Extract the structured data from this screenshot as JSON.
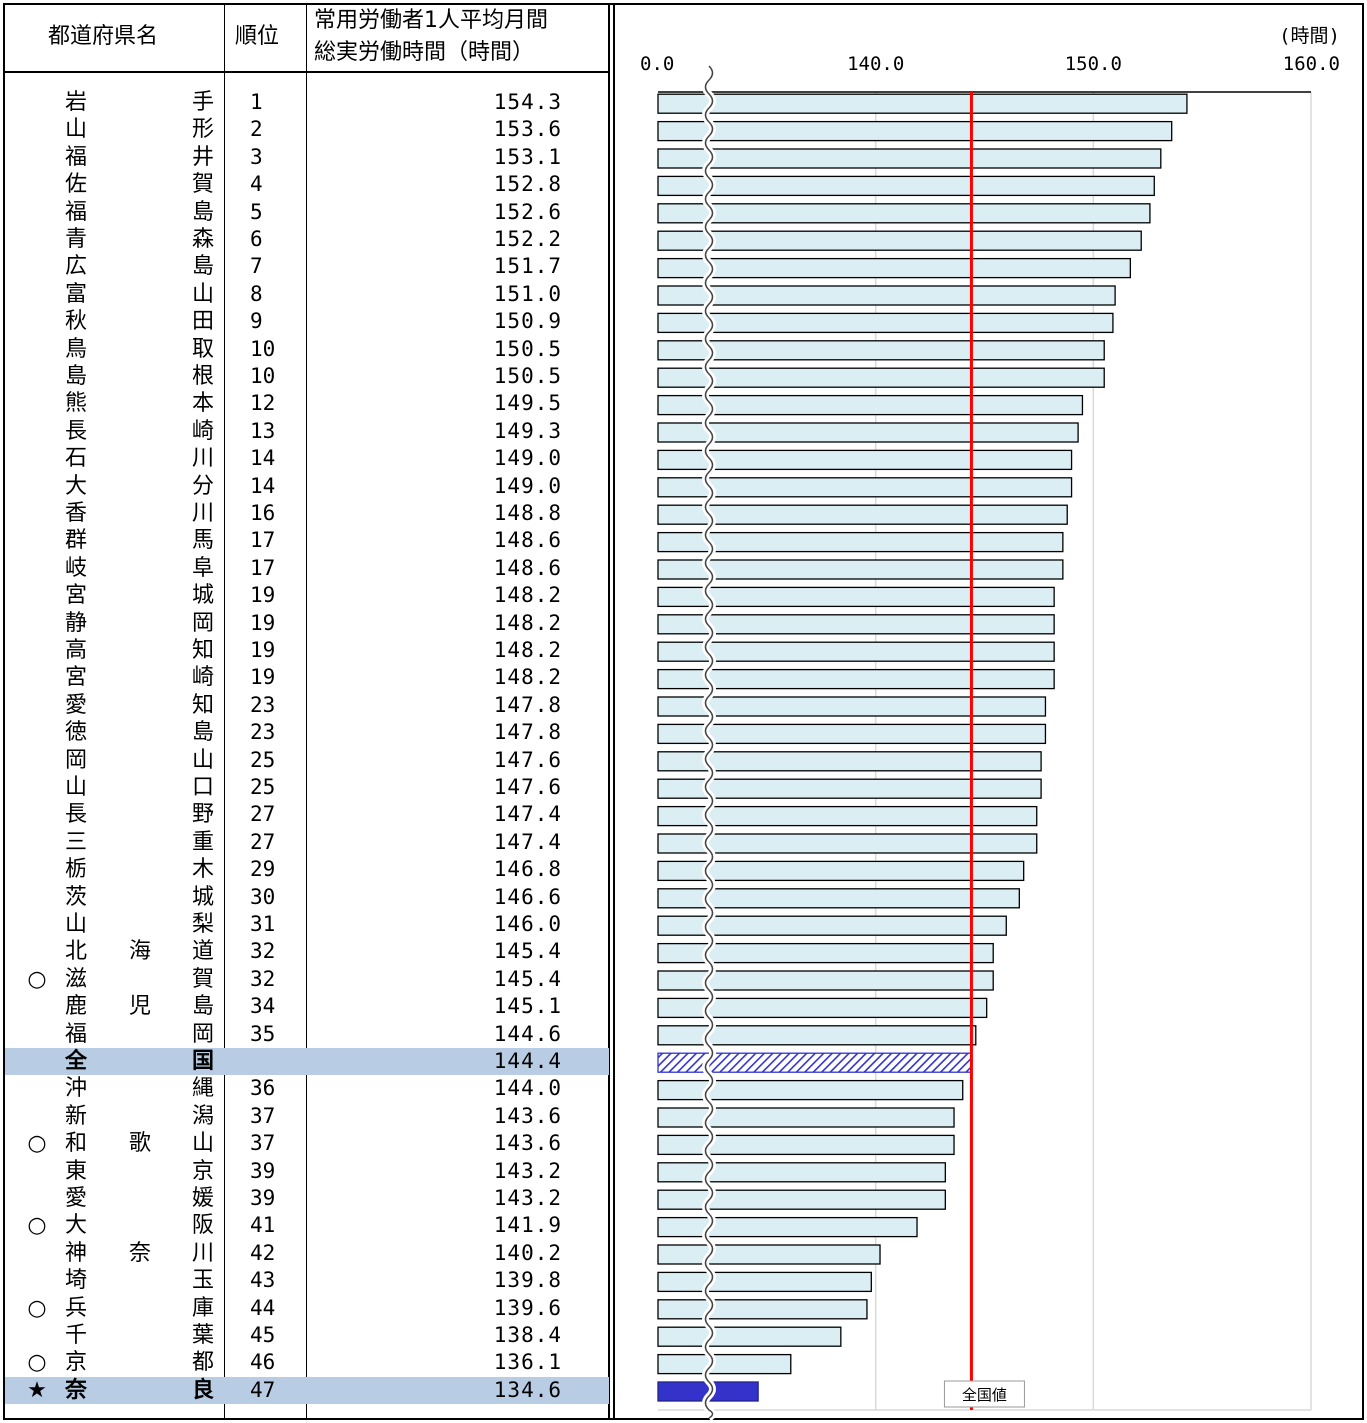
{
  "table": {
    "headers": {
      "prefecture": "都道府県名",
      "rank": "順位",
      "value_line1": "常用労働者1人平均月間",
      "value_line2": "総実労働時間（時間）"
    },
    "rows": [
      {
        "mark": "",
        "name": "岩手",
        "rank": "1",
        "value": "154.3",
        "highlight": false
      },
      {
        "mark": "",
        "name": "山形",
        "rank": "2",
        "value": "153.6",
        "highlight": false
      },
      {
        "mark": "",
        "name": "福井",
        "rank": "3",
        "value": "153.1",
        "highlight": false
      },
      {
        "mark": "",
        "name": "佐賀",
        "rank": "4",
        "value": "152.8",
        "highlight": false
      },
      {
        "mark": "",
        "name": "福島",
        "rank": "5",
        "value": "152.6",
        "highlight": false
      },
      {
        "mark": "",
        "name": "青森",
        "rank": "6",
        "value": "152.2",
        "highlight": false
      },
      {
        "mark": "",
        "name": "広島",
        "rank": "7",
        "value": "151.7",
        "highlight": false
      },
      {
        "mark": "",
        "name": "富山",
        "rank": "8",
        "value": "151.0",
        "highlight": false
      },
      {
        "mark": "",
        "name": "秋田",
        "rank": "9",
        "value": "150.9",
        "highlight": false
      },
      {
        "mark": "",
        "name": "鳥取",
        "rank": "10",
        "value": "150.5",
        "highlight": false
      },
      {
        "mark": "",
        "name": "島根",
        "rank": "10",
        "value": "150.5",
        "highlight": false
      },
      {
        "mark": "",
        "name": "熊本",
        "rank": "12",
        "value": "149.5",
        "highlight": false
      },
      {
        "mark": "",
        "name": "長崎",
        "rank": "13",
        "value": "149.3",
        "highlight": false
      },
      {
        "mark": "",
        "name": "石川",
        "rank": "14",
        "value": "149.0",
        "highlight": false
      },
      {
        "mark": "",
        "name": "大分",
        "rank": "14",
        "value": "149.0",
        "highlight": false
      },
      {
        "mark": "",
        "name": "香川",
        "rank": "16",
        "value": "148.8",
        "highlight": false
      },
      {
        "mark": "",
        "name": "群馬",
        "rank": "17",
        "value": "148.6",
        "highlight": false
      },
      {
        "mark": "",
        "name": "岐阜",
        "rank": "17",
        "value": "148.6",
        "highlight": false
      },
      {
        "mark": "",
        "name": "宮城",
        "rank": "19",
        "value": "148.2",
        "highlight": false
      },
      {
        "mark": "",
        "name": "静岡",
        "rank": "19",
        "value": "148.2",
        "highlight": false
      },
      {
        "mark": "",
        "name": "高知",
        "rank": "19",
        "value": "148.2",
        "highlight": false
      },
      {
        "mark": "",
        "name": "宮崎",
        "rank": "19",
        "value": "148.2",
        "highlight": false
      },
      {
        "mark": "",
        "name": "愛知",
        "rank": "23",
        "value": "147.8",
        "highlight": false
      },
      {
        "mark": "",
        "name": "徳島",
        "rank": "23",
        "value": "147.8",
        "highlight": false
      },
      {
        "mark": "",
        "name": "岡山",
        "rank": "25",
        "value": "147.6",
        "highlight": false
      },
      {
        "mark": "",
        "name": "山口",
        "rank": "25",
        "value": "147.6",
        "highlight": false
      },
      {
        "mark": "",
        "name": "長野",
        "rank": "27",
        "value": "147.4",
        "highlight": false
      },
      {
        "mark": "",
        "name": "三重",
        "rank": "27",
        "value": "147.4",
        "highlight": false
      },
      {
        "mark": "",
        "name": "栃木",
        "rank": "29",
        "value": "146.8",
        "highlight": false
      },
      {
        "mark": "",
        "name": "茨城",
        "rank": "30",
        "value": "146.6",
        "highlight": false
      },
      {
        "mark": "",
        "name": "山梨",
        "rank": "31",
        "value": "146.0",
        "highlight": false
      },
      {
        "mark": "",
        "name": "北海道",
        "rank": "32",
        "value": "145.4",
        "highlight": false
      },
      {
        "mark": "○",
        "name": "滋賀",
        "rank": "32",
        "value": "145.4",
        "highlight": false
      },
      {
        "mark": "",
        "name": "鹿児島",
        "rank": "34",
        "value": "145.1",
        "highlight": false
      },
      {
        "mark": "",
        "name": "福岡",
        "rank": "35",
        "value": "144.6",
        "highlight": false
      },
      {
        "mark": "",
        "name": "全国",
        "rank": "",
        "value": "144.4",
        "highlight": true
      },
      {
        "mark": "",
        "name": "沖縄",
        "rank": "36",
        "value": "144.0",
        "highlight": false
      },
      {
        "mark": "",
        "name": "新潟",
        "rank": "37",
        "value": "143.6",
        "highlight": false
      },
      {
        "mark": "○",
        "name": "和歌山",
        "rank": "37",
        "value": "143.6",
        "highlight": false
      },
      {
        "mark": "",
        "name": "東京",
        "rank": "39",
        "value": "143.2",
        "highlight": false
      },
      {
        "mark": "",
        "name": "愛媛",
        "rank": "39",
        "value": "143.2",
        "highlight": false
      },
      {
        "mark": "○",
        "name": "大阪",
        "rank": "41",
        "value": "141.9",
        "highlight": false
      },
      {
        "mark": "",
        "name": "神奈川",
        "rank": "42",
        "value": "140.2",
        "highlight": false
      },
      {
        "mark": "",
        "name": "埼玉",
        "rank": "43",
        "value": "139.8",
        "highlight": false
      },
      {
        "mark": "○",
        "name": "兵庫",
        "rank": "44",
        "value": "139.6",
        "highlight": false
      },
      {
        "mark": "",
        "name": "千葉",
        "rank": "45",
        "value": "138.4",
        "highlight": false
      },
      {
        "mark": "○",
        "name": "京都",
        "rank": "46",
        "value": "136.1",
        "highlight": false
      },
      {
        "mark": "★",
        "name": "奈良",
        "rank": "47",
        "value": "134.6",
        "highlight": true
      }
    ]
  },
  "chart_data": {
    "type": "bar",
    "orientation": "horizontal",
    "unit_label": "(時間)",
    "axis_break": true,
    "tick_labels": [
      "0.0",
      "140.0",
      "150.0",
      "160.0"
    ],
    "xlim_visible": [
      130,
      160
    ],
    "national_line_value": 144.4,
    "national_line_label": "全国値",
    "grid": true,
    "colors": {
      "bar_fill": "#dbeef4",
      "bar_stroke": "#000000",
      "national_bar_pattern": "#3333cc",
      "target_bar": "#3333cc",
      "national_line": "#ff0000",
      "gridline": "#d9d9d9"
    },
    "categories": [
      "岩手",
      "山形",
      "福井",
      "佐賀",
      "福島",
      "青森",
      "広島",
      "富山",
      "秋田",
      "鳥取",
      "島根",
      "熊本",
      "長崎",
      "石川",
      "大分",
      "香川",
      "群馬",
      "岐阜",
      "宮城",
      "静岡",
      "高知",
      "宮崎",
      "愛知",
      "徳島",
      "岡山",
      "山口",
      "長野",
      "三重",
      "栃木",
      "茨城",
      "山梨",
      "北海道",
      "滋賀",
      "鹿児島",
      "福岡",
      "全国",
      "沖縄",
      "新潟",
      "和歌山",
      "東京",
      "愛媛",
      "大阪",
      "神奈川",
      "埼玉",
      "兵庫",
      "千葉",
      "京都",
      "奈良"
    ],
    "values": [
      154.3,
      153.6,
      153.1,
      152.8,
      152.6,
      152.2,
      151.7,
      151.0,
      150.9,
      150.5,
      150.5,
      149.5,
      149.3,
      149.0,
      149.0,
      148.8,
      148.6,
      148.6,
      148.2,
      148.2,
      148.2,
      148.2,
      147.8,
      147.8,
      147.6,
      147.6,
      147.4,
      147.4,
      146.8,
      146.6,
      146.0,
      145.4,
      145.4,
      145.1,
      144.6,
      144.4,
      144.0,
      143.6,
      143.6,
      143.2,
      143.2,
      141.9,
      140.2,
      139.8,
      139.6,
      138.4,
      136.1,
      134.6
    ]
  }
}
